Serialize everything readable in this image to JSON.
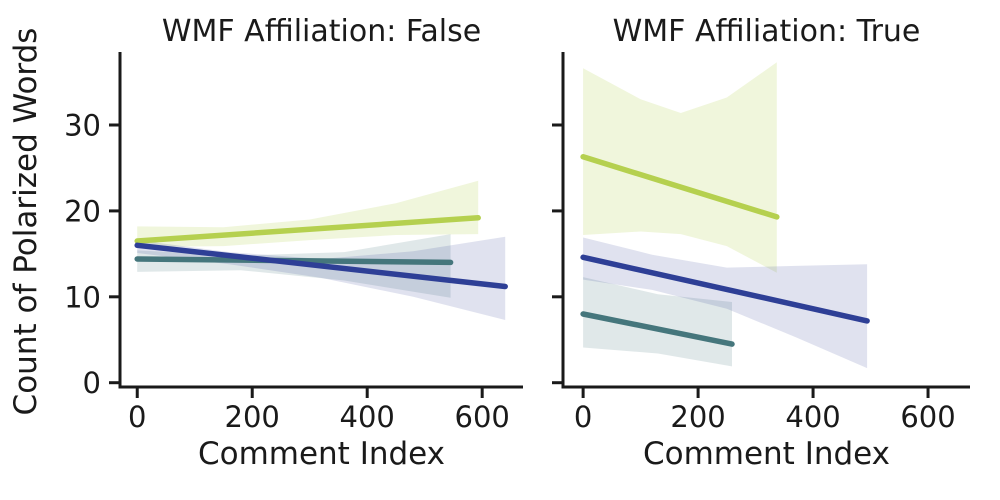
{
  "figure": {
    "ylabel": "Count of Polarized Words"
  },
  "chart_data": [
    {
      "type": "line",
      "title": "WMF Affiliation: False",
      "xlabel": "Comment Index",
      "ylabel": "Count of Polarized Words",
      "xlim": [
        -30,
        671
      ],
      "ylim": [
        -0.5,
        38.5
      ],
      "xticks": [
        0,
        200,
        400,
        600
      ],
      "yticks": [
        0,
        10,
        20,
        30
      ],
      "show_ytick_labels": true,
      "grid": false,
      "legend": "none",
      "series": [
        {
          "name": "regression-green",
          "color": "#b5d04f",
          "band_opacity": 0.2,
          "line": {
            "x": [
              0,
              593
            ],
            "y": [
              16.5,
              19.2
            ]
          },
          "band": [
            [
              0,
              18.2
            ],
            [
              150,
              18.1
            ],
            [
              300,
              19.0
            ],
            [
              450,
              20.9
            ],
            [
              593,
              23.5
            ],
            [
              593,
              17.3
            ],
            [
              450,
              17.2
            ],
            [
              300,
              16.6
            ],
            [
              150,
              15.9
            ],
            [
              0,
              15.8
            ]
          ]
        },
        {
          "name": "regression-teal",
          "color": "#45767c",
          "band_opacity": 0.17,
          "line": {
            "x": [
              0,
              545
            ],
            "y": [
              14.4,
              14.0
            ]
          },
          "band": [
            [
              0,
              15.4
            ],
            [
              180,
              14.8
            ],
            [
              360,
              15.2
            ],
            [
              545,
              17.3
            ],
            [
              545,
              9.9
            ],
            [
              360,
              11.9
            ],
            [
              180,
              13.1
            ],
            [
              0,
              12.9
            ]
          ]
        },
        {
          "name": "regression-blue",
          "color": "#2e3f96",
          "band_opacity": 0.15,
          "line": {
            "x": [
              0,
              640
            ],
            "y": [
              16.0,
              11.2
            ]
          },
          "band": [
            [
              0,
              16.6
            ],
            [
              160,
              15.2
            ],
            [
              320,
              14.4
            ],
            [
              480,
              15.3
            ],
            [
              640,
              17.0
            ],
            [
              640,
              7.3
            ],
            [
              480,
              10.0
            ],
            [
              320,
              12.2
            ],
            [
              160,
              13.8
            ],
            [
              0,
              15.1
            ]
          ]
        }
      ]
    },
    {
      "type": "line",
      "title": "WMF Affiliation: True",
      "xlabel": "Comment Index",
      "ylabel": "Count of Polarized Words",
      "xlim": [
        -35,
        673
      ],
      "ylim": [
        -0.5,
        38.5
      ],
      "xticks": [
        0,
        200,
        400,
        600
      ],
      "yticks": [
        0,
        10,
        20,
        30
      ],
      "show_ytick_labels": false,
      "grid": false,
      "legend": "none",
      "series": [
        {
          "name": "regression-green",
          "color": "#b5d04f",
          "band_opacity": 0.2,
          "line": {
            "x": [
              0,
              337
            ],
            "y": [
              26.3,
              19.3
            ]
          },
          "band": [
            [
              0,
              36.6
            ],
            [
              100,
              33.0
            ],
            [
              170,
              31.4
            ],
            [
              250,
              33.2
            ],
            [
              337,
              37.3
            ],
            [
              337,
              12.8
            ],
            [
              250,
              15.9
            ],
            [
              170,
              17.3
            ],
            [
              100,
              17.6
            ],
            [
              0,
              17.2
            ]
          ]
        },
        {
          "name": "regression-teal",
          "color": "#45767c",
          "band_opacity": 0.17,
          "line": {
            "x": [
              0,
              259
            ],
            "y": [
              8.0,
              4.5
            ]
          },
          "band": [
            [
              0,
              12.3
            ],
            [
              130,
              10.3
            ],
            [
              259,
              9.4
            ],
            [
              259,
              1.9
            ],
            [
              130,
              3.4
            ],
            [
              0,
              4.1
            ]
          ]
        },
        {
          "name": "regression-blue",
          "color": "#2e3f96",
          "band_opacity": 0.15,
          "line": {
            "x": [
              0,
              494
            ],
            "y": [
              14.6,
              7.2
            ]
          },
          "band": [
            [
              0,
              16.9
            ],
            [
              120,
              14.9
            ],
            [
              250,
              13.4
            ],
            [
              370,
              13.6
            ],
            [
              494,
              13.8
            ],
            [
              494,
              1.7
            ],
            [
              370,
              5.3
            ],
            [
              250,
              8.6
            ],
            [
              120,
              10.8
            ],
            [
              0,
              12.0
            ]
          ]
        }
      ]
    }
  ]
}
